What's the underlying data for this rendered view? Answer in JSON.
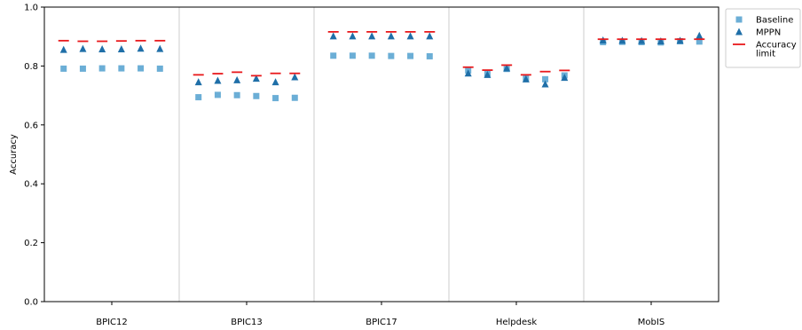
{
  "chart_data": {
    "type": "scatter",
    "ylabel": "Accuracy",
    "ylim": [
      0.0,
      1.0
    ],
    "yticks": [
      "0.0",
      "0.2",
      "0.4",
      "0.6",
      "0.8",
      "1.0"
    ],
    "groups": [
      "BPIC12",
      "BPIC13",
      "BPIC17",
      "Helpdesk",
      "MobIS"
    ],
    "points_per_group": 6,
    "legend_position": "outside-top-right",
    "series": [
      {
        "name": "Baseline",
        "marker": "square",
        "color": "#6baed6",
        "values": [
          [
            0.791,
            0.791,
            0.792,
            0.792,
            0.792,
            0.791
          ],
          [
            0.694,
            0.702,
            0.701,
            0.698,
            0.691,
            0.692
          ],
          [
            0.835,
            0.835,
            0.835,
            0.834,
            0.834,
            0.833
          ],
          [
            0.785,
            0.775,
            0.79,
            0.76,
            0.755,
            0.768
          ],
          [
            0.881,
            0.882,
            0.881,
            0.88,
            0.884,
            0.883
          ]
        ]
      },
      {
        "name": "MPPN",
        "marker": "triangle",
        "color": "#1f6fa8",
        "values": [
          [
            0.855,
            0.858,
            0.857,
            0.857,
            0.859,
            0.858
          ],
          [
            0.745,
            0.75,
            0.752,
            0.757,
            0.745,
            0.762
          ],
          [
            0.901,
            0.901,
            0.901,
            0.901,
            0.901,
            0.901
          ],
          [
            0.775,
            0.77,
            0.792,
            0.755,
            0.738,
            0.76
          ],
          [
            0.887,
            0.886,
            0.885,
            0.884,
            0.886,
            0.903
          ]
        ]
      },
      {
        "name": "Accuracy limit",
        "name_lines": [
          "Accuracy",
          "limit"
        ],
        "marker": "hline",
        "color": "#e8191c",
        "values": [
          [
            0.886,
            0.884,
            0.884,
            0.885,
            0.886,
            0.886
          ],
          [
            0.77,
            0.774,
            0.779,
            0.767,
            0.775,
            0.775
          ],
          [
            0.916,
            0.916,
            0.916,
            0.916,
            0.916,
            0.916
          ],
          [
            0.796,
            0.786,
            0.803,
            0.77,
            0.781,
            0.785
          ],
          [
            0.891,
            0.891,
            0.891,
            0.891,
            0.891,
            0.891
          ]
        ]
      }
    ]
  }
}
